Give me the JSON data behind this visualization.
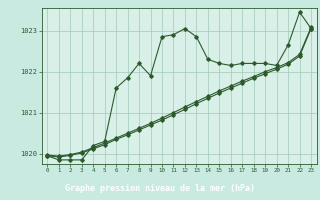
{
  "xlabel": "Graphe pression niveau de la mer (hPa)",
  "background_color": "#c8eae0",
  "plot_bg_color": "#d8f0e8",
  "grid_color": "#a0c8b8",
  "line_color": "#2d5a2d",
  "footer_bg": "#4a7a5a",
  "footer_text_color": "#ffffff",
  "x": [
    0,
    1,
    2,
    3,
    4,
    5,
    6,
    7,
    8,
    9,
    10,
    11,
    12,
    13,
    14,
    15,
    16,
    17,
    18,
    19,
    20,
    21,
    22,
    23
  ],
  "series1": [
    1019.95,
    1019.85,
    1019.85,
    1019.85,
    1020.2,
    1020.3,
    1021.6,
    1021.85,
    1022.2,
    1021.9,
    1022.85,
    1022.9,
    1023.05,
    1022.85,
    1022.3,
    1022.2,
    1022.15,
    1022.2,
    1022.2,
    1022.2,
    1022.15,
    1022.65,
    1023.45,
    1023.05
  ],
  "series2": [
    1019.95,
    1019.92,
    1019.96,
    1020.02,
    1020.12,
    1020.22,
    1020.35,
    1020.46,
    1020.58,
    1020.7,
    1020.82,
    1020.95,
    1021.08,
    1021.22,
    1021.35,
    1021.48,
    1021.6,
    1021.72,
    1021.84,
    1021.95,
    1022.06,
    1022.18,
    1022.38,
    1023.05
  ],
  "series3": [
    1019.97,
    1019.94,
    1019.98,
    1020.04,
    1020.15,
    1020.26,
    1020.38,
    1020.5,
    1020.62,
    1020.74,
    1020.87,
    1021.0,
    1021.14,
    1021.27,
    1021.4,
    1021.53,
    1021.65,
    1021.77,
    1021.88,
    1022.0,
    1022.1,
    1022.22,
    1022.42,
    1023.08
  ],
  "ylim": [
    1019.75,
    1023.55
  ],
  "yticks": [
    1020,
    1021,
    1022,
    1023
  ],
  "xticks": [
    0,
    1,
    2,
    3,
    4,
    5,
    6,
    7,
    8,
    9,
    10,
    11,
    12,
    13,
    14,
    15,
    16,
    17,
    18,
    19,
    20,
    21,
    22,
    23
  ],
  "marker": "D",
  "markersize": 1.8,
  "linewidth": 0.8
}
